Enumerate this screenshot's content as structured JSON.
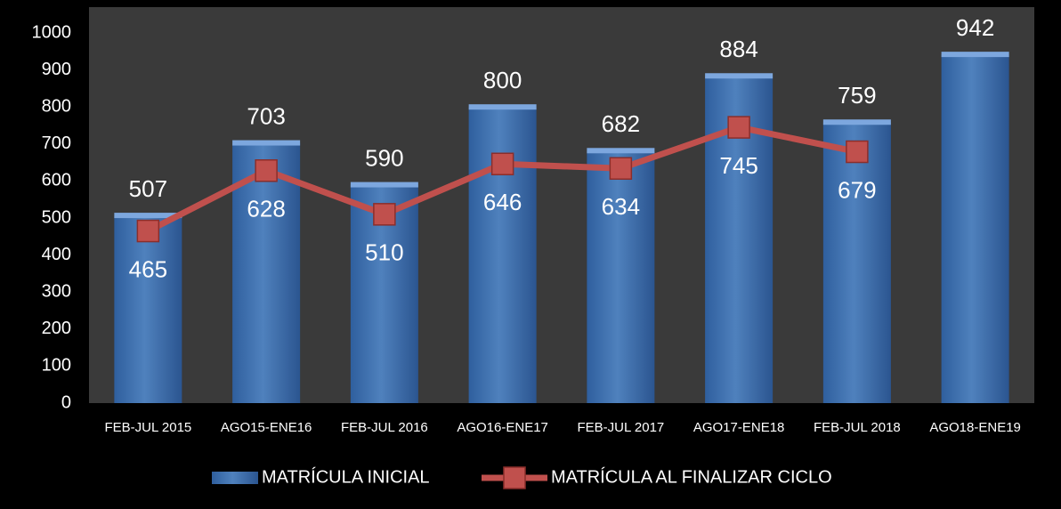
{
  "chart_data": {
    "type": "bar",
    "categories": [
      "FEB-JUL 2015",
      "AGO15-ENE16",
      "FEB-JUL 2016",
      "AGO16-ENE17",
      "FEB-JUL 2017",
      "AGO17-ENE18",
      "FEB-JUL 2018",
      "AGO18-ENE19"
    ],
    "series": [
      {
        "name": "MATRÍCULA INICIAL",
        "type": "bar",
        "color": "#4f81bd",
        "values": [
          507,
          703,
          590,
          800,
          682,
          884,
          759,
          942
        ]
      },
      {
        "name": "MATRÍCULA AL FINALIZAR CICLO",
        "type": "line",
        "color": "#c0504d",
        "values": [
          465,
          628,
          510,
          646,
          634,
          745,
          679,
          null
        ]
      }
    ],
    "ylim": [
      0,
      1000
    ],
    "yticks": [
      0,
      100,
      200,
      300,
      400,
      500,
      600,
      700,
      800,
      900,
      1000
    ],
    "legend": "bottom"
  }
}
